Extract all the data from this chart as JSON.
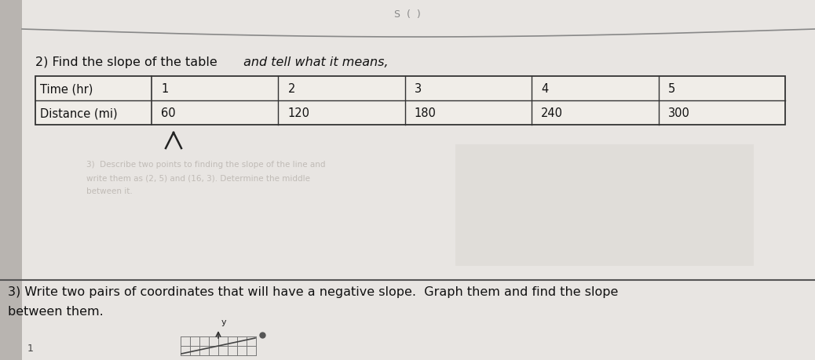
{
  "title_printed": "2) Find the slope of the table",
  "title_handwritten": " and tell what it means,",
  "row1_label": "Time (hr)",
  "row2_label": "Distance (mi)",
  "col_headers": [
    "1",
    "2",
    "3",
    "4",
    "5"
  ],
  "col_values": [
    "60",
    "120",
    "180",
    "240",
    "300"
  ],
  "section3_line1": "3) Write two pairs of coordinates that will have a negative slope.  Graph them and find the slope",
  "section3_line2": "between them.",
  "page_bg": "#c8c4c0",
  "paper_bg": "#e8e5e2",
  "paper_bg2": "#dedad6",
  "border_color": "#444444",
  "line_color": "#666666",
  "text_color": "#111111",
  "ghost_color": "#b8b4b0",
  "table_border": "#333333",
  "caret_char": "∧"
}
